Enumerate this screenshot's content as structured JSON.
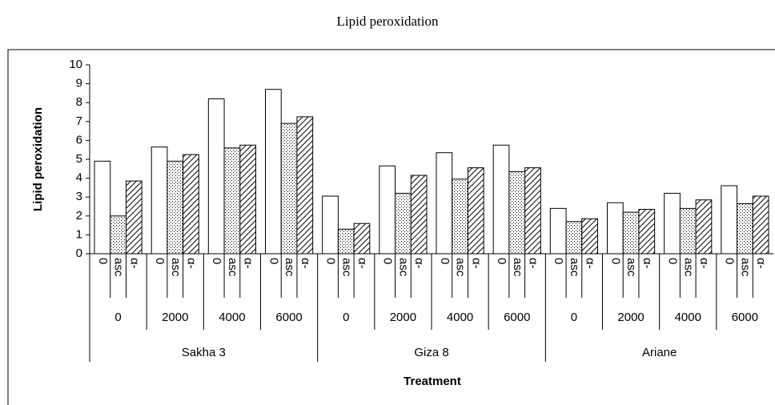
{
  "chart_data": {
    "type": "bar",
    "title": "Lipid peroxidation",
    "ylabel": "Lipid peroxidation",
    "xlabel": "Treatment",
    "groups": [
      {
        "name": "Sakha 3",
        "categories": [
          "0",
          "2000",
          "4000",
          "6000"
        ]
      },
      {
        "name": "Giza 8",
        "categories": [
          "0",
          "2000",
          "4000",
          "6000"
        ]
      },
      {
        "name": "Ariane",
        "categories": [
          "0",
          "2000",
          "4000",
          "6000"
        ]
      }
    ],
    "series": [
      {
        "name": "0",
        "color": "#ffffff",
        "pattern": "none",
        "values": [
          4.9,
          5.65,
          8.2,
          8.7,
          3.05,
          4.65,
          5.35,
          5.75,
          2.4,
          2.7,
          3.2,
          3.6
        ]
      },
      {
        "name": "asc",
        "color": "#ffffff",
        "pattern": "dots",
        "values": [
          2.0,
          4.9,
          5.6,
          6.9,
          1.3,
          3.2,
          3.95,
          4.35,
          1.7,
          2.2,
          2.4,
          2.65
        ]
      },
      {
        "name": "α-",
        "color": "#ffffff",
        "pattern": "diagonal",
        "values": [
          3.85,
          5.25,
          5.75,
          7.25,
          1.6,
          4.15,
          4.55,
          4.55,
          1.85,
          2.35,
          2.85,
          3.05
        ]
      }
    ],
    "ylim": [
      0,
      10
    ],
    "yticks": [
      0,
      1,
      2,
      3,
      4,
      5,
      6,
      7,
      8,
      9,
      10
    ],
    "grid": false
  }
}
